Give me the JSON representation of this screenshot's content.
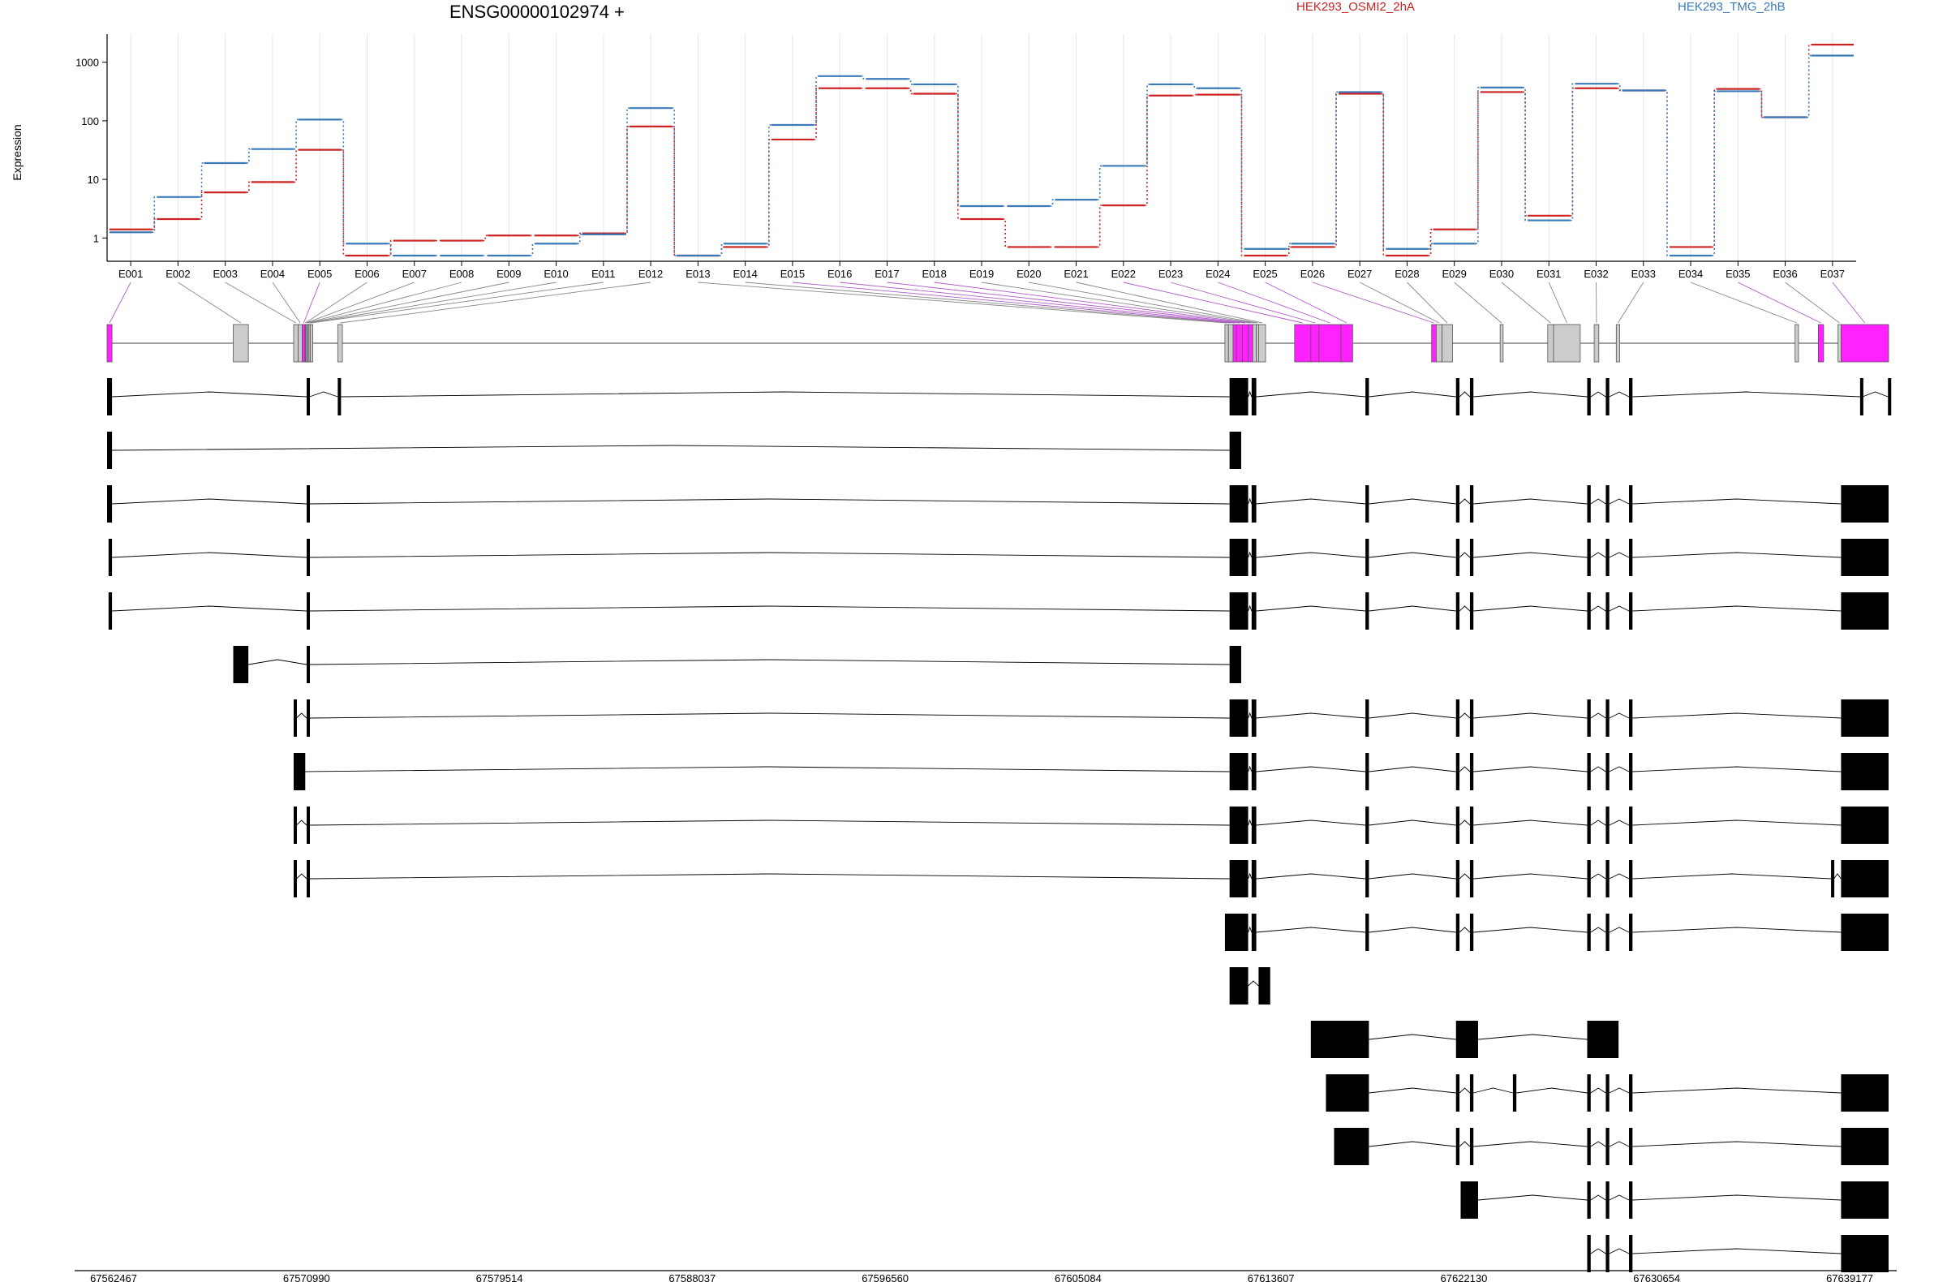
{
  "chart_data": {
    "type": "line",
    "title": "ENSG00000102974 +",
    "ylabel": "Expression",
    "yscale": "log",
    "ylim": [
      0.4,
      2500
    ],
    "yticks": [
      1,
      10,
      100,
      1000
    ],
    "yticklabels": [
      "1",
      "10",
      "100",
      "1000"
    ],
    "grid": true,
    "legend_position": "top-right",
    "colors": {
      "HEK293_OSMI2_2hA": "#cc2222",
      "HEK293_TMG_2hB": "#3a7ab8",
      "highlight": "#ff22ff",
      "exon_gray": "#cccccc"
    },
    "categories": [
      "E001",
      "E002",
      "E003",
      "E004",
      "E005",
      "E006",
      "E007",
      "E008",
      "E009",
      "E010",
      "E011",
      "E012",
      "E013",
      "E014",
      "E015",
      "E016",
      "E017",
      "E018",
      "E019",
      "E020",
      "E021",
      "E022",
      "E023",
      "E024",
      "E025",
      "E026",
      "E027",
      "E028",
      "E029",
      "E030",
      "E031",
      "E032",
      "E033",
      "E034",
      "E035",
      "E036",
      "E037"
    ],
    "series": [
      {
        "name": "HEK293_OSMI2_2hA",
        "values": [
          1.4,
          2.1,
          6,
          9,
          32,
          0.5,
          0.9,
          0.9,
          1.1,
          1.1,
          1.2,
          80,
          0.5,
          0.7,
          48,
          360,
          360,
          290,
          2.1,
          0.7,
          0.7,
          3.6,
          270,
          280,
          0.5,
          0.7,
          290,
          0.5,
          1.4,
          310,
          2.4,
          360,
          330,
          0.7,
          350,
          115,
          2000
        ]
      },
      {
        "name": "HEK293_TMG_2hB",
        "values": [
          1.25,
          5,
          19,
          33,
          105,
          0.8,
          0.5,
          0.5,
          0.5,
          0.8,
          1.15,
          165,
          0.5,
          0.8,
          85,
          580,
          520,
          420,
          3.5,
          3.5,
          4.5,
          17,
          420,
          360,
          0.65,
          0.8,
          310,
          0.65,
          0.8,
          370,
          2.0,
          430,
          330,
          0.5,
          320,
          115,
          1300
        ]
      }
    ],
    "genomic_axis": {
      "start": 67562467,
      "end": 67639177,
      "tick_labels": [
        "67562467",
        "67570990",
        "67579514",
        "67588037",
        "67596560",
        "67605084",
        "67613607",
        "67622130",
        "67630654",
        "67639177"
      ]
    },
    "exon_bins": [
      {
        "id": "E001",
        "start": 67562467,
        "end": 67562680,
        "sig": true
      },
      {
        "id": "E002",
        "start": 67567900,
        "end": 67568550,
        "sig": false
      },
      {
        "id": "E003",
        "start": 67570500,
        "end": 67570700,
        "sig": false
      },
      {
        "id": "E004",
        "start": 67570700,
        "end": 67570870,
        "sig": false
      },
      {
        "id": "E005",
        "start": 67570870,
        "end": 67570990,
        "sig": true
      },
      {
        "id": "E006",
        "start": 67570990,
        "end": 67571020,
        "sig": false
      },
      {
        "id": "E007",
        "start": 67571020,
        "end": 67571060,
        "sig": false
      },
      {
        "id": "E008",
        "start": 67571060,
        "end": 67571110,
        "sig": false
      },
      {
        "id": "E009",
        "start": 67571110,
        "end": 67571160,
        "sig": false
      },
      {
        "id": "E010",
        "start": 67571160,
        "end": 67571220,
        "sig": false
      },
      {
        "id": "E011",
        "start": 67571220,
        "end": 67571280,
        "sig": false
      },
      {
        "id": "E012",
        "start": 67572400,
        "end": 67572600,
        "sig": false
      },
      {
        "id": "E013",
        "start": 67610600,
        "end": 67610750,
        "sig": false
      },
      {
        "id": "E014",
        "start": 67610750,
        "end": 67610950,
        "sig": false
      },
      {
        "id": "E015",
        "start": 67610950,
        "end": 67611100,
        "sig": true
      },
      {
        "id": "E016",
        "start": 67611100,
        "end": 67611350,
        "sig": true
      },
      {
        "id": "E017",
        "start": 67611350,
        "end": 67611600,
        "sig": true
      },
      {
        "id": "E018",
        "start": 67611600,
        "end": 67611800,
        "sig": true
      },
      {
        "id": "E019",
        "start": 67611800,
        "end": 67611950,
        "sig": false
      },
      {
        "id": "E020",
        "start": 67611950,
        "end": 67612050,
        "sig": false
      },
      {
        "id": "E021",
        "start": 67612050,
        "end": 67612350,
        "sig": false
      },
      {
        "id": "E022",
        "start": 67613600,
        "end": 67614300,
        "sig": true
      },
      {
        "id": "E023",
        "start": 67614300,
        "end": 67614650,
        "sig": true
      },
      {
        "id": "E024",
        "start": 67614650,
        "end": 67615600,
        "sig": true
      },
      {
        "id": "E025",
        "start": 67615600,
        "end": 67616100,
        "sig": true
      },
      {
        "id": "E026",
        "start": 67619500,
        "end": 67619700,
        "sig": true
      },
      {
        "id": "E027",
        "start": 67619700,
        "end": 67619950,
        "sig": false
      },
      {
        "id": "E028",
        "start": 67619950,
        "end": 67620400,
        "sig": false
      },
      {
        "id": "E029",
        "start": 67622450,
        "end": 67622580,
        "sig": false
      },
      {
        "id": "E030",
        "start": 67624500,
        "end": 67624750,
        "sig": false
      },
      {
        "id": "E031",
        "start": 67624750,
        "end": 67625900,
        "sig": false
      },
      {
        "id": "E032",
        "start": 67626500,
        "end": 67626700,
        "sig": false
      },
      {
        "id": "E033",
        "start": 67627450,
        "end": 67627600,
        "sig": false
      },
      {
        "id": "E034",
        "start": 67635150,
        "end": 67635300,
        "sig": false
      },
      {
        "id": "E035",
        "start": 67636150,
        "end": 67636380,
        "sig": true
      },
      {
        "id": "E036",
        "start": 67637000,
        "end": 67637130,
        "sig": false
      },
      {
        "id": "E037",
        "start": 67637130,
        "end": 67639177,
        "sig": true
      }
    ],
    "transcripts": [
      {
        "exons": [
          [
            67562467,
            67562680
          ],
          [
            67571060,
            67571180
          ],
          [
            67572400,
            67572500
          ],
          [
            67610800,
            67611600
          ],
          [
            67611750,
            67611950
          ],
          [
            67616650,
            67616800
          ],
          [
            67620550,
            67620700
          ],
          [
            67621150,
            67621300
          ],
          [
            67626200,
            67626350
          ],
          [
            67627000,
            67627150
          ],
          [
            67628000,
            67628150
          ],
          [
            67637950,
            67638050
          ],
          [
            67639150,
            67639177
          ]
        ],
        "ends": [
          67639177
        ]
      },
      {
        "exons": [
          [
            67562467,
            67562680
          ],
          [
            67610800,
            67611300
          ]
        ]
      },
      {
        "exons": [
          [
            67562467,
            67562680
          ],
          [
            67571060,
            67571180
          ],
          [
            67610800,
            67611600
          ],
          [
            67611750,
            67611950
          ],
          [
            67616650,
            67616800
          ],
          [
            67620550,
            67620700
          ],
          [
            67621150,
            67621300
          ],
          [
            67626200,
            67626350
          ],
          [
            67627000,
            67627150
          ],
          [
            67628000,
            67628150
          ],
          [
            67637950,
            67638050
          ],
          [
            67637130,
            67639177
          ]
        ]
      },
      {
        "exons": [
          [
            67562530,
            67562680
          ],
          [
            67571060,
            67571180
          ],
          [
            67610800,
            67611600
          ],
          [
            67611750,
            67611950
          ],
          [
            67616650,
            67616800
          ],
          [
            67620550,
            67620700
          ],
          [
            67621150,
            67621300
          ],
          [
            67626200,
            67626350
          ],
          [
            67627000,
            67627150
          ],
          [
            67628000,
            67628150
          ],
          [
            67637950,
            67638050
          ],
          [
            67637130,
            67639177
          ]
        ]
      },
      {
        "exons": [
          [
            67562530,
            67562680
          ],
          [
            67571060,
            67571180
          ],
          [
            67610800,
            67611600
          ],
          [
            67611750,
            67611950
          ],
          [
            67616650,
            67616800
          ],
          [
            67620550,
            67620700
          ],
          [
            67621150,
            67621300
          ],
          [
            67626200,
            67626350
          ],
          [
            67627000,
            67627150
          ],
          [
            67628000,
            67628150
          ],
          [
            67637950,
            67638050
          ],
          [
            67637130,
            67639177
          ]
        ]
      },
      {
        "exons": [
          [
            67567900,
            67568550
          ],
          [
            67571060,
            67571180
          ],
          [
            67610800,
            67611300
          ]
        ]
      },
      {
        "exons": [
          [
            67570500,
            67570620
          ],
          [
            67571060,
            67571180
          ],
          [
            67610800,
            67611600
          ],
          [
            67611750,
            67611950
          ],
          [
            67616650,
            67616800
          ],
          [
            67620550,
            67620700
          ],
          [
            67621150,
            67621300
          ],
          [
            67626200,
            67626350
          ],
          [
            67627000,
            67627150
          ],
          [
            67628000,
            67628150
          ],
          [
            67637950,
            67638050
          ],
          [
            67637130,
            67639177
          ]
        ]
      },
      {
        "exons": [
          [
            67570500,
            67571000
          ],
          [
            67610800,
            67611600
          ],
          [
            67611750,
            67611950
          ],
          [
            67616650,
            67616800
          ],
          [
            67620550,
            67620700
          ],
          [
            67621150,
            67621300
          ],
          [
            67626200,
            67626350
          ],
          [
            67627000,
            67627150
          ],
          [
            67628000,
            67628150
          ],
          [
            67637950,
            67638050
          ],
          [
            67637130,
            67639177
          ]
        ]
      },
      {
        "exons": [
          [
            67570500,
            67570620
          ],
          [
            67571060,
            67571180
          ],
          [
            67610800,
            67611600
          ],
          [
            67611750,
            67611950
          ],
          [
            67616650,
            67616800
          ],
          [
            67620550,
            67620700
          ],
          [
            67621150,
            67621300
          ],
          [
            67626200,
            67626350
          ],
          [
            67627000,
            67627150
          ],
          [
            67628000,
            67628150
          ],
          [
            67637950,
            67638050
          ],
          [
            67637130,
            67639177
          ]
        ]
      },
      {
        "exons": [
          [
            67570500,
            67570620
          ],
          [
            67571060,
            67571180
          ],
          [
            67610800,
            67611600
          ],
          [
            67611750,
            67611950
          ],
          [
            67616650,
            67616800
          ],
          [
            67620550,
            67620700
          ],
          [
            67621150,
            67621300
          ],
          [
            67626200,
            67626350
          ],
          [
            67627000,
            67627150
          ],
          [
            67628000,
            67628150
          ],
          [
            67636700,
            67636820
          ],
          [
            67637950,
            67638050
          ],
          [
            67637130,
            67639177
          ]
        ]
      },
      {
        "exons": [
          [
            67610600,
            67611600
          ],
          [
            67611750,
            67611950
          ],
          [
            67616650,
            67616800
          ],
          [
            67620550,
            67620700
          ],
          [
            67621150,
            67621300
          ],
          [
            67626200,
            67626350
          ],
          [
            67627000,
            67627150
          ],
          [
            67628000,
            67628150
          ],
          [
            67637950,
            67638050
          ],
          [
            67637130,
            67639177
          ]
        ]
      },
      {
        "exons": [
          [
            67610800,
            67611600
          ],
          [
            67612050,
            67612550
          ]
        ]
      },
      {
        "exons": [
          [
            67614300,
            67616800
          ],
          [
            67620550,
            67621500
          ],
          [
            67626200,
            67627550
          ]
        ]
      },
      {
        "exons": [
          [
            67614950,
            67616800
          ],
          [
            67620550,
            67620700
          ],
          [
            67621150,
            67621300
          ],
          [
            67623000,
            67623150
          ],
          [
            67626200,
            67626350
          ],
          [
            67627000,
            67627150
          ],
          [
            67628000,
            67628150
          ],
          [
            67637950,
            67638050
          ],
          [
            67637130,
            67639177
          ]
        ]
      },
      {
        "exons": [
          [
            67615300,
            67616800
          ],
          [
            67620550,
            67620700
          ],
          [
            67621150,
            67621300
          ],
          [
            67626200,
            67626350
          ],
          [
            67627000,
            67627150
          ],
          [
            67628000,
            67628150
          ],
          [
            67637950,
            67638050
          ],
          [
            67637130,
            67639177
          ]
        ]
      },
      {
        "exons": [
          [
            67620750,
            67621500
          ],
          [
            67626200,
            67626350
          ],
          [
            67627000,
            67627150
          ],
          [
            67628000,
            67628150
          ],
          [
            67637950,
            67638050
          ],
          [
            67637130,
            67639177
          ]
        ]
      },
      {
        "exons": [
          [
            67626200,
            67626350
          ],
          [
            67627000,
            67627150
          ],
          [
            67628000,
            67628150
          ],
          [
            67637950,
            67638050
          ],
          [
            67637130,
            67639177
          ]
        ]
      }
    ]
  }
}
